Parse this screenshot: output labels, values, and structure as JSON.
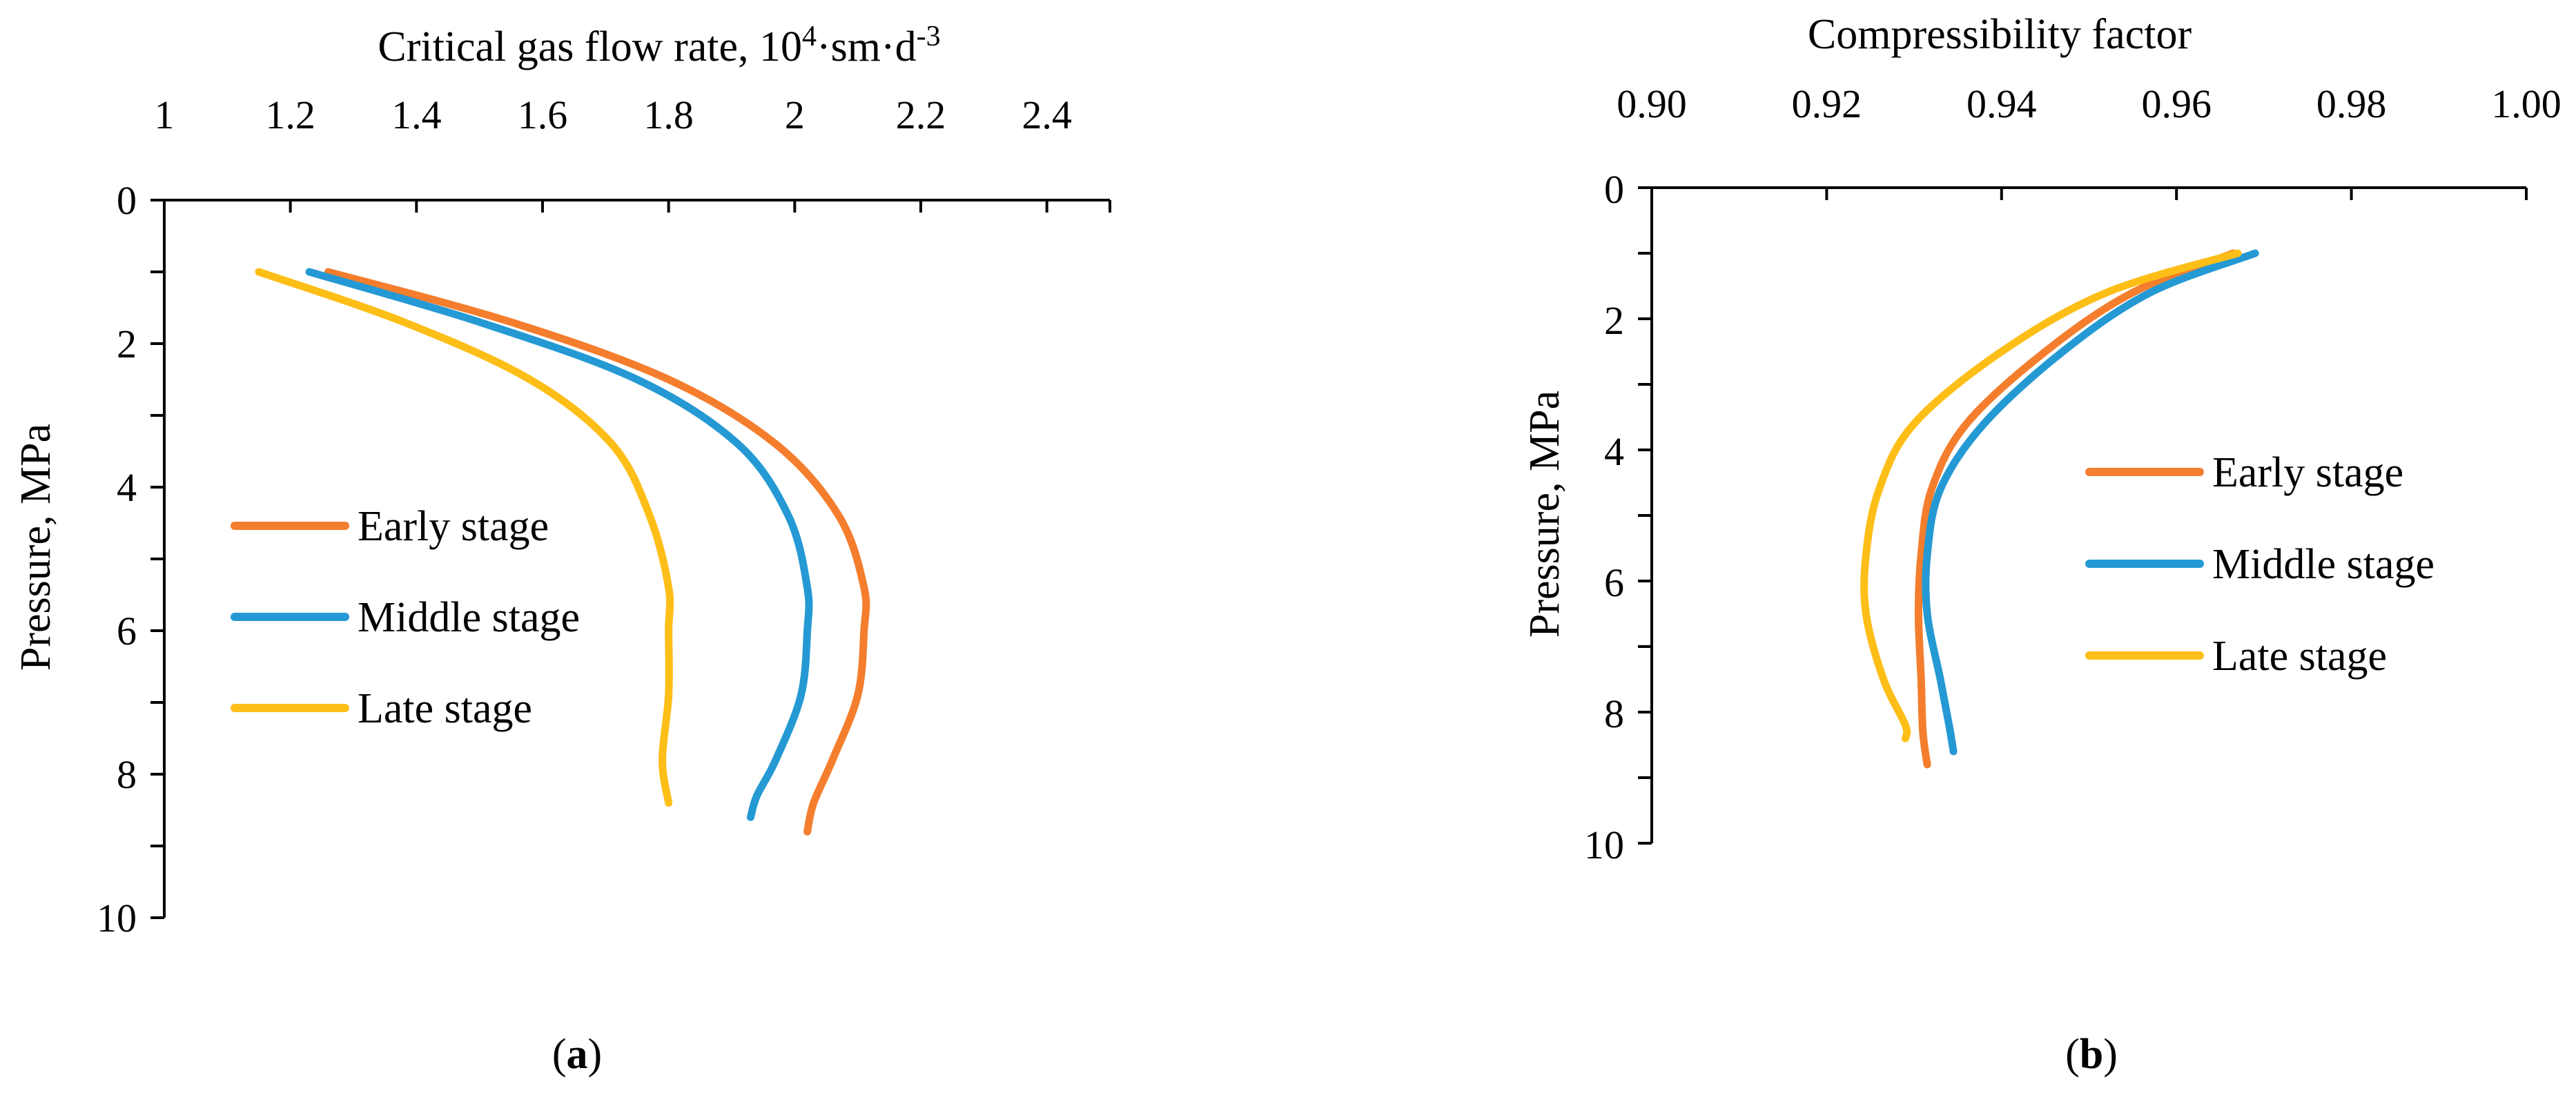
{
  "chart_data": [
    {
      "type": "line",
      "panel_label": "a",
      "xlabel": "Critical gas flow rate, 10",
      "xlabel_sup1": "4",
      "xlabel_mid": "·sm·d",
      "xlabel_sup2": "-3",
      "ylabel": "Pressure, MPa",
      "x_axis_position": "top",
      "y_axis_inverted": true,
      "xlim": [
        1,
        2.5
      ],
      "ylim": [
        0,
        10
      ],
      "x_tick_values": [
        1,
        1.2,
        1.4,
        1.6,
        1.8,
        2,
        2.2,
        2.4
      ],
      "x_tick_labels": [
        "1",
        "1.2",
        "1.4",
        "1.6",
        "1.8",
        "2",
        "2.2",
        "2.4"
      ],
      "y_tick_values": [
        0,
        2,
        4,
        6,
        8,
        10
      ],
      "y_tick_labels": [
        "0",
        "2",
        "4",
        "6",
        "8",
        "10"
      ],
      "grid": false,
      "legend_position": "center-left",
      "series": [
        {
          "name": "Early stage",
          "color": "#F47E2D",
          "points": [
            [
              1.26,
              1.0
            ],
            [
              1.55,
              1.7
            ],
            [
              1.8,
              2.5
            ],
            [
              1.97,
              3.4
            ],
            [
              2.07,
              4.4
            ],
            [
              2.11,
              5.4
            ],
            [
              2.11,
              6.0
            ],
            [
              2.1,
              6.9
            ],
            [
              2.06,
              7.8
            ],
            [
              2.03,
              8.4
            ],
            [
              2.02,
              8.8
            ]
          ]
        },
        {
          "name": "Middle stage",
          "color": "#2599D3",
          "points": [
            [
              1.23,
              1.0
            ],
            [
              1.5,
              1.7
            ],
            [
              1.75,
              2.5
            ],
            [
              1.91,
              3.4
            ],
            [
              1.99,
              4.4
            ],
            [
              2.02,
              5.4
            ],
            [
              2.02,
              6.0
            ],
            [
              2.01,
              6.9
            ],
            [
              1.97,
              7.8
            ],
            [
              1.94,
              8.3
            ],
            [
              1.93,
              8.6
            ]
          ]
        },
        {
          "name": "Late stage",
          "color": "#FDBE17",
          "points": [
            [
              1.15,
              1.0
            ],
            [
              1.38,
              1.7
            ],
            [
              1.58,
              2.5
            ],
            [
              1.71,
              3.4
            ],
            [
              1.77,
              4.4
            ],
            [
              1.8,
              5.4
            ],
            [
              1.8,
              6.0
            ],
            [
              1.8,
              6.9
            ],
            [
              1.79,
              7.8
            ],
            [
              1.8,
              8.4
            ]
          ]
        }
      ]
    },
    {
      "type": "line",
      "panel_label": "b",
      "xlabel": "Compressibility factor",
      "ylabel": "Pressure, MPa",
      "x_axis_position": "top",
      "y_axis_inverted": true,
      "xlim": [
        0.9,
        1.0
      ],
      "ylim": [
        0,
        10
      ],
      "x_tick_values": [
        0.9,
        0.92,
        0.94,
        0.96,
        0.98,
        1.0
      ],
      "x_tick_labels": [
        "0.90",
        "0.92",
        "0.94",
        "0.96",
        "0.98",
        "1.00"
      ],
      "y_tick_values": [
        0,
        2,
        4,
        6,
        8,
        10
      ],
      "y_tick_labels": [
        "0",
        "2",
        "4",
        "6",
        "8",
        "10"
      ],
      "grid": false,
      "legend_position": "right",
      "series": [
        {
          "name": "Early stage",
          "color": "#F47E2D",
          "points": [
            [
              0.9665,
              1.0
            ],
            [
              0.955,
              1.6
            ],
            [
              0.945,
              2.5
            ],
            [
              0.936,
              3.6
            ],
            [
              0.932,
              4.6
            ],
            [
              0.9308,
              5.6
            ],
            [
              0.9305,
              6.5
            ],
            [
              0.9308,
              7.5
            ],
            [
              0.931,
              8.3
            ],
            [
              0.9315,
              8.8
            ]
          ]
        },
        {
          "name": "Middle stage",
          "color": "#2599D3",
          "points": [
            [
              0.969,
              1.0
            ],
            [
              0.957,
              1.6
            ],
            [
              0.947,
              2.5
            ],
            [
              0.938,
              3.6
            ],
            [
              0.933,
              4.6
            ],
            [
              0.9315,
              5.6
            ],
            [
              0.9315,
              6.5
            ],
            [
              0.933,
              7.5
            ],
            [
              0.934,
              8.2
            ],
            [
              0.9345,
              8.6
            ]
          ]
        },
        {
          "name": "Late stage",
          "color": "#FDBE17",
          "points": [
            [
              0.967,
              1.0
            ],
            [
              0.952,
              1.6
            ],
            [
              0.94,
              2.5
            ],
            [
              0.93,
              3.6
            ],
            [
              0.926,
              4.6
            ],
            [
              0.9245,
              5.6
            ],
            [
              0.9245,
              6.5
            ],
            [
              0.9265,
              7.5
            ],
            [
              0.929,
              8.2
            ],
            [
              0.929,
              8.4
            ]
          ]
        }
      ]
    }
  ]
}
